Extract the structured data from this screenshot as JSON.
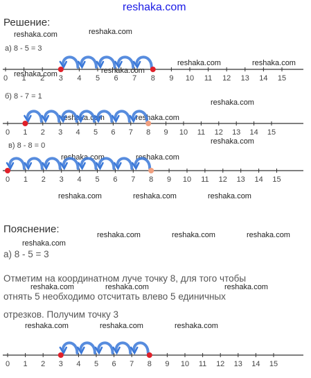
{
  "site": "reshaka.com",
  "watermark": "reshaka.com",
  "solution_heading": "Решение:",
  "explanation_heading": "Пояснение:",
  "examples": [
    {
      "label": "а) 8 - 5 = 3",
      "start": 8,
      "end": 3,
      "jumps": 5
    },
    {
      "label": "б) 8 - 7 = 1",
      "start": 8,
      "end": 1,
      "jumps": 7
    },
    {
      "label": "в) 8 - 8 = 0",
      "start": 8,
      "end": 0,
      "jumps": 8
    }
  ],
  "explanation": {
    "equation": "а) 8 - 5 = 3",
    "lines": [
      "Отметим на координатном луче точку 8, для того чтобы",
      "отнять 5 необходимо отсчитать влево 5 единичных",
      "отрезков. Получим точку 3"
    ]
  },
  "number_line": {
    "min": 0,
    "max": 15
  },
  "colors": {
    "arc": "#3a78d8",
    "point": "#e0202a",
    "open_point": "#f0a080",
    "axis": "#333333",
    "site": "#1a1ae6"
  }
}
